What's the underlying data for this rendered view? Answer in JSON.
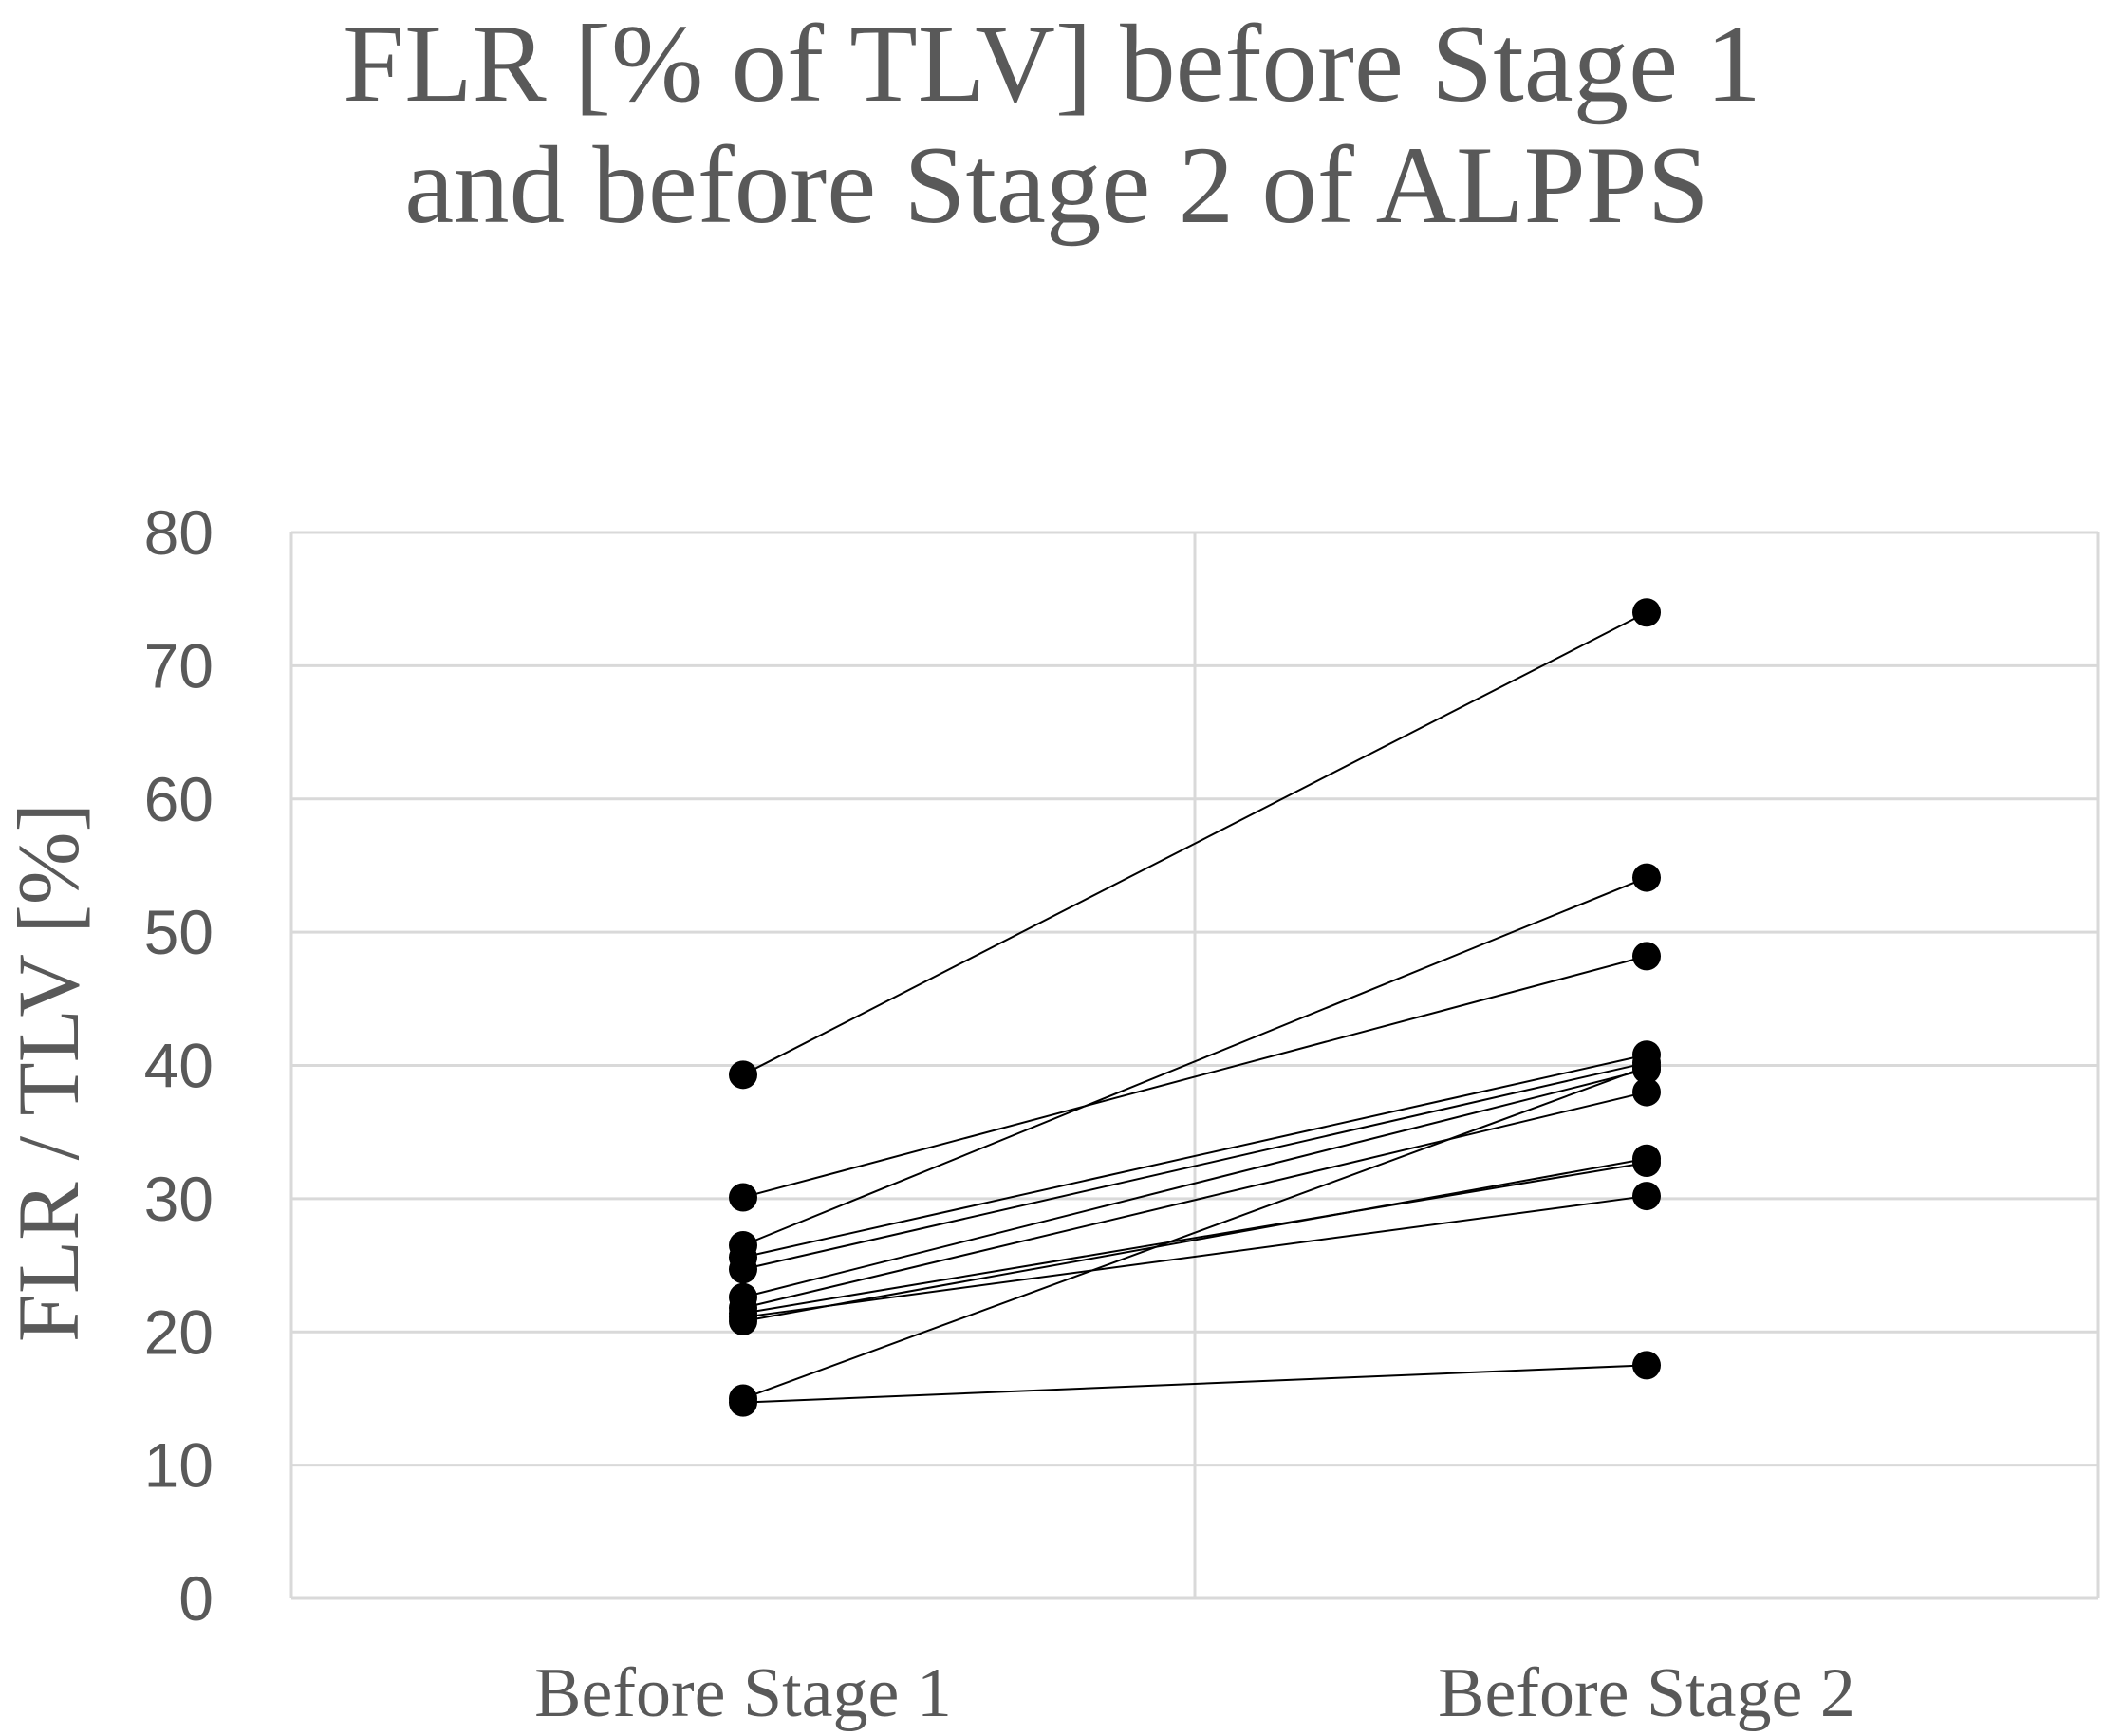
{
  "chart_data": {
    "type": "line",
    "title_lines": [
      "FLR [% of TLV] before Stage 1",
      "and before Stage 2 of ALPPS"
    ],
    "xlabel": "",
    "ylabel": "FLR / TLV [%]",
    "categories": [
      "Before Stage 1",
      "Before Stage 2"
    ],
    "ylim": [
      0,
      80
    ],
    "yticks": [
      0,
      10,
      20,
      30,
      40,
      50,
      60,
      70,
      80
    ],
    "grid": true,
    "legend": "none",
    "marker_color": "#000000",
    "line_color": "#000000",
    "grid_color": "#d9d9d9",
    "text_color": "#595959",
    "series": [
      {
        "values": [
          39.3,
          74.0
        ]
      },
      {
        "values": [
          30.1,
          48.2
        ]
      },
      {
        "values": [
          26.5,
          54.1
        ]
      },
      {
        "values": [
          25.6,
          40.8
        ]
      },
      {
        "values": [
          24.7,
          40.2
        ]
      },
      {
        "values": [
          22.6,
          39.7
        ]
      },
      {
        "values": [
          21.8,
          38.0
        ]
      },
      {
        "values": [
          21.4,
          32.7
        ]
      },
      {
        "values": [
          20.8,
          33.0
        ]
      },
      {
        "values": [
          21.1,
          30.2
        ]
      },
      {
        "values": [
          15.0,
          39.9
        ]
      },
      {
        "values": [
          14.7,
          17.5
        ]
      }
    ]
  }
}
